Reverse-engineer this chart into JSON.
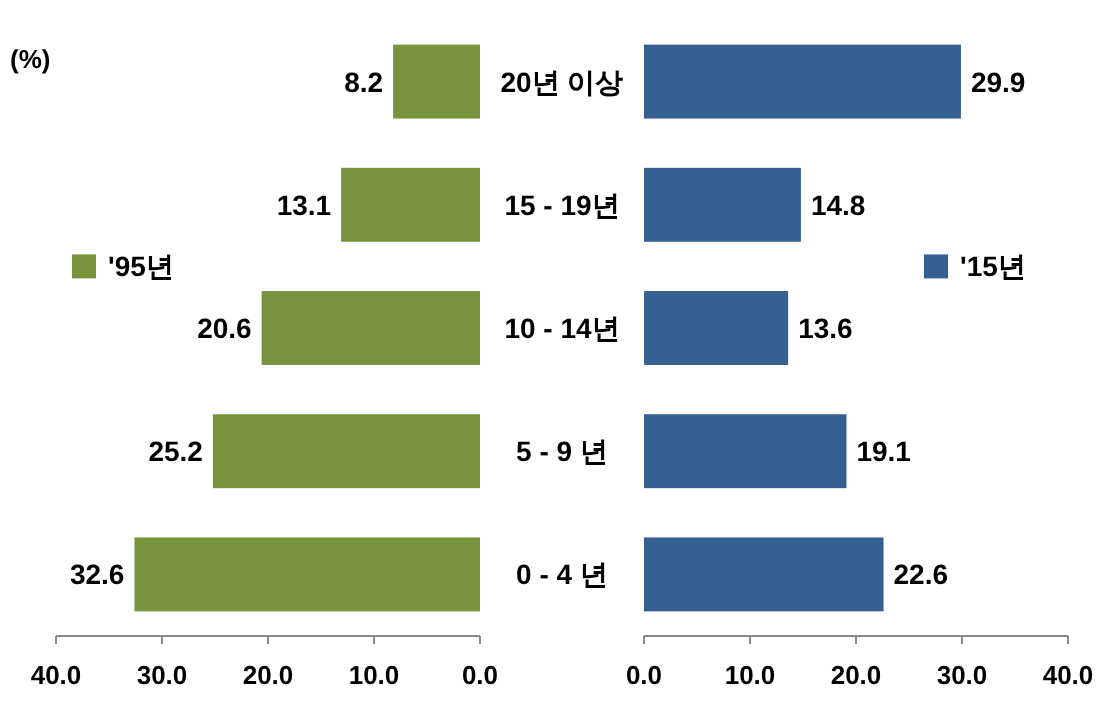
{
  "chart_data": [
    {
      "type": "bar",
      "orientation": "horizontal",
      "ylabel": "(%)",
      "categories": [
        "20년 이상",
        "15 - 19년",
        "10 - 14년",
        "5 - 9 년",
        "0 - 4 년"
      ],
      "series": [
        {
          "name": "'95년",
          "color": "#77933c",
          "values": [
            8.2,
            13.1,
            20.6,
            25.2,
            32.6
          ]
        }
      ],
      "data_labels": true,
      "xlim": [
        40,
        0
      ],
      "xticks": [
        {
          "value": 40,
          "label": "40.0"
        },
        {
          "value": 30,
          "label": "30.0"
        },
        {
          "value": 20,
          "label": "20.0"
        },
        {
          "value": 10,
          "label": "10.0"
        },
        {
          "value": 0,
          "label": "0.0"
        }
      ],
      "legend": "left"
    },
    {
      "type": "bar",
      "orientation": "horizontal",
      "tick_labels": "x",
      "series": [
        {
          "name": "'15년",
          "color": "#376092",
          "values": [
            29.9,
            14.8,
            13.6,
            19.1,
            22.6
          ]
        }
      ],
      "data_labels": true,
      "xlim": [
        0,
        40
      ],
      "xticks": [
        {
          "value": 0,
          "label": "0.0"
        },
        {
          "value": 10,
          "label": "10.0"
        },
        {
          "value": 20,
          "label": "20.0"
        },
        {
          "value": 30,
          "label": "30.0"
        },
        {
          "value": 40,
          "label": "40.0"
        }
      ],
      "legend": "right"
    }
  ]
}
